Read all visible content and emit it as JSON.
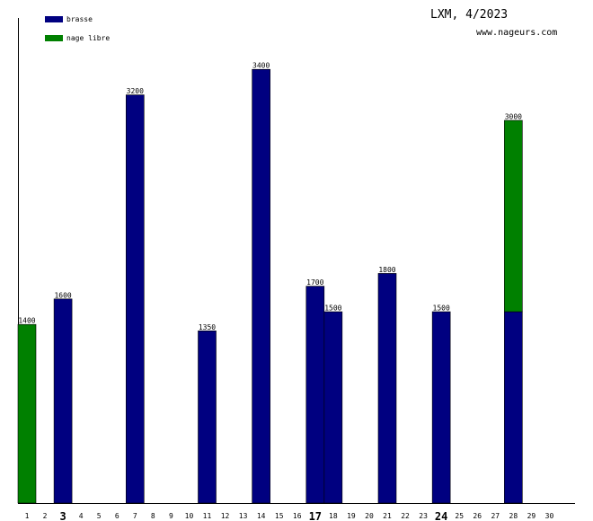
{
  "title": "LXM, 4/2023",
  "site": "www.nageurs.com",
  "colors": {
    "brasse": "#000080",
    "nage_libre": "#008000"
  },
  "chart_data": {
    "type": "bar",
    "stacked": true,
    "categories": [
      "1",
      "2",
      "3",
      "4",
      "5",
      "6",
      "7",
      "8",
      "9",
      "10",
      "11",
      "12",
      "13",
      "14",
      "15",
      "16",
      "17",
      "18",
      "19",
      "20",
      "21",
      "22",
      "23",
      "24",
      "25",
      "26",
      "27",
      "28",
      "29",
      "30"
    ],
    "highlighted_categories": [
      "3",
      "17",
      "24"
    ],
    "series": [
      {
        "name": "brasse",
        "color": "#000080",
        "values": [
          0,
          0,
          1600,
          0,
          0,
          0,
          3200,
          0,
          0,
          0,
          1350,
          0,
          0,
          3400,
          0,
          0,
          1700,
          1500,
          0,
          0,
          1800,
          0,
          0,
          1500,
          0,
          0,
          0,
          1500,
          0,
          0
        ]
      },
      {
        "name": "nage libre",
        "color": "#008000",
        "values": [
          1400,
          0,
          0,
          0,
          0,
          0,
          0,
          0,
          0,
          0,
          0,
          0,
          0,
          0,
          0,
          0,
          0,
          0,
          0,
          0,
          0,
          0,
          0,
          0,
          0,
          0,
          0,
          1500,
          0,
          0
        ]
      }
    ],
    "totals": [
      1400,
      0,
      1600,
      0,
      0,
      0,
      3200,
      0,
      0,
      0,
      1350,
      0,
      0,
      3400,
      0,
      0,
      1700,
      1500,
      0,
      0,
      1800,
      0,
      0,
      1500,
      0,
      0,
      0,
      3000,
      0,
      0
    ],
    "ylim": [
      0,
      3800
    ],
    "legend": "top-left",
    "grid": false
  }
}
